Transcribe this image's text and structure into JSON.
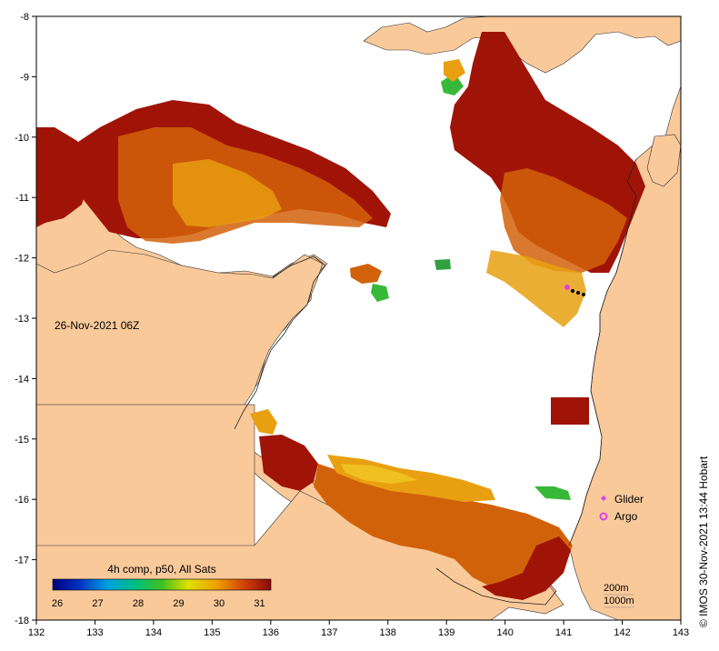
{
  "map": {
    "date_label": "26-Nov-2021 06Z",
    "credit": "© IMOS 30-Nov-2021 13:44 Hobart",
    "x_ticks": [
      "132",
      "133",
      "134",
      "135",
      "136",
      "137",
      "138",
      "139",
      "140",
      "141",
      "142",
      "143"
    ],
    "y_ticks": [
      "-8",
      "-9",
      "-10",
      "-11",
      "-12",
      "-13",
      "-14",
      "-15",
      "-16",
      "-17",
      "-18"
    ],
    "colorbar": {
      "title": "4h comp, p50, All Sats",
      "labels": [
        "26",
        "27",
        "28",
        "29",
        "30",
        "31"
      ]
    },
    "legend": [
      {
        "label": "Glider",
        "color": "#e040e0",
        "symbol": "diamond"
      },
      {
        "label": "Argo",
        "color": "#e040e0",
        "symbol": "circle"
      }
    ],
    "contours": [
      "200m",
      "1000m"
    ],
    "colors": {
      "land": "#f9c99a",
      "no_data": "#ffffff",
      "sst_hot": "#a01408",
      "sst_warm": "#d2620a",
      "sst_mid": "#e8a010",
      "sst_cool": "#38b838"
    }
  }
}
